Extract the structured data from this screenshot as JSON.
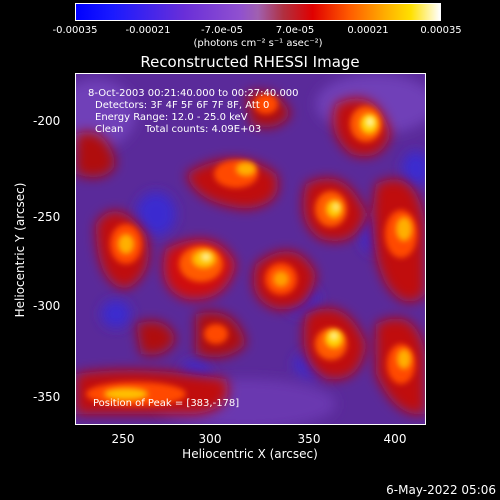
{
  "colorbar": {
    "ticks": [
      "-0.00035",
      "-0.00021",
      "-7.0e-05",
      "7.0e-05",
      "0.00021",
      "0.00035"
    ],
    "unit": "(photons cm⁻² s⁻¹ asec⁻²)",
    "colors": [
      "#0000ff",
      "#6a2fd8",
      "#a060b0",
      "#e00000",
      "#ffae00",
      "#ffffff"
    ]
  },
  "title": "Reconstructed RHESSI Image",
  "info": {
    "time_range": "8-Oct-2003 00:21:40.000 to 00:27:40.000",
    "detectors": "Detectors: 3F 4F 5F 6F 7F 8F, Att 0",
    "energy": "Energy Range: 12.0 - 25.0 keV",
    "method": "Clean",
    "counts": "Total counts: 4.09E+03",
    "peak": "Position of Peak = [383,-178]"
  },
  "axes": {
    "xlabel": "Heliocentric X (arcsec)",
    "ylabel": "Heliocentric Y (arcsec)",
    "xticks": [
      "250",
      "300",
      "350",
      "400"
    ],
    "yticks": [
      "-200",
      "-250",
      "-300",
      "-350"
    ]
  },
  "footer": {
    "date": "6-May-2022 05:06"
  }
}
